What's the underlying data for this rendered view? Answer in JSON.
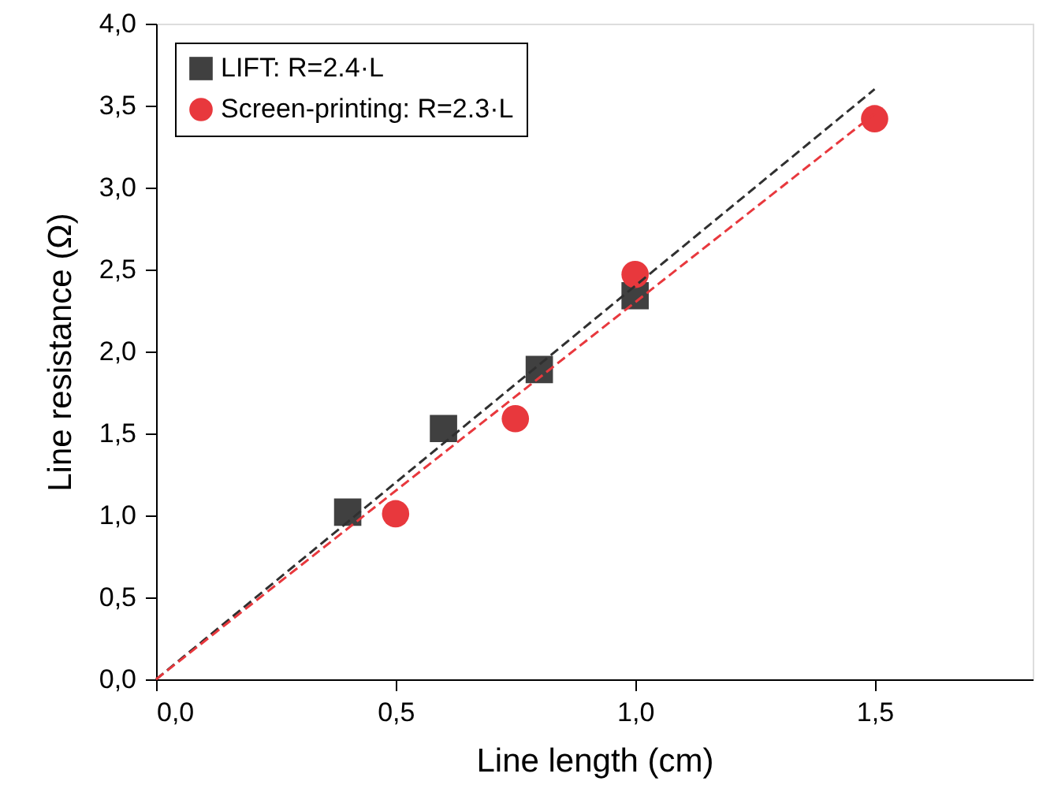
{
  "chart_data": {
    "type": "scatter",
    "xlabel": "Line length (cm)",
    "ylabel": "Line resistance (Ω)",
    "xlim": [
      0,
      1.83
    ],
    "ylim": [
      0,
      4.0
    ],
    "xticks": [
      {
        "value": 0,
        "label": "0,0"
      },
      {
        "value": 0.5,
        "label": "0,5"
      },
      {
        "value": 1.0,
        "label": "1,0"
      },
      {
        "value": 1.5,
        "label": "1,5"
      }
    ],
    "yticks": [
      {
        "value": 0,
        "label": "0,0"
      },
      {
        "value": 0.5,
        "label": "0,5"
      },
      {
        "value": 1.0,
        "label": "1,0"
      },
      {
        "value": 1.5,
        "label": "1,5"
      },
      {
        "value": 2.0,
        "label": "2,0"
      },
      {
        "value": 2.5,
        "label": "2,5"
      },
      {
        "value": 3.0,
        "label": "3,0"
      },
      {
        "value": 3.5,
        "label": "3,5"
      },
      {
        "value": 4.0,
        "label": "4,0"
      }
    ],
    "grid": false,
    "legend": "top left",
    "series": [
      {
        "name": "LIFT: R=2.4·L",
        "marker": "square",
        "color": "#404040",
        "x": [
          0.4,
          0.6,
          0.8,
          1.0
        ],
        "values": [
          1.02,
          1.53,
          1.89,
          2.34
        ]
      },
      {
        "name": "Screen-printing: R=2.3·L",
        "marker": "circle",
        "color": "#e8383d",
        "x": [
          0.5,
          0.75,
          1.0,
          1.5
        ],
        "values": [
          1.01,
          1.59,
          2.47,
          3.42
        ]
      },
      {
        "type": "line",
        "line_style": "dashed",
        "color": "#303030",
        "x": [
          0,
          1.5
        ],
        "values": [
          0,
          3.6
        ]
      },
      {
        "type": "line",
        "line_style": "dashed",
        "color": "#e8383d",
        "x": [
          0,
          1.5
        ],
        "values": [
          0,
          3.45
        ]
      }
    ]
  }
}
